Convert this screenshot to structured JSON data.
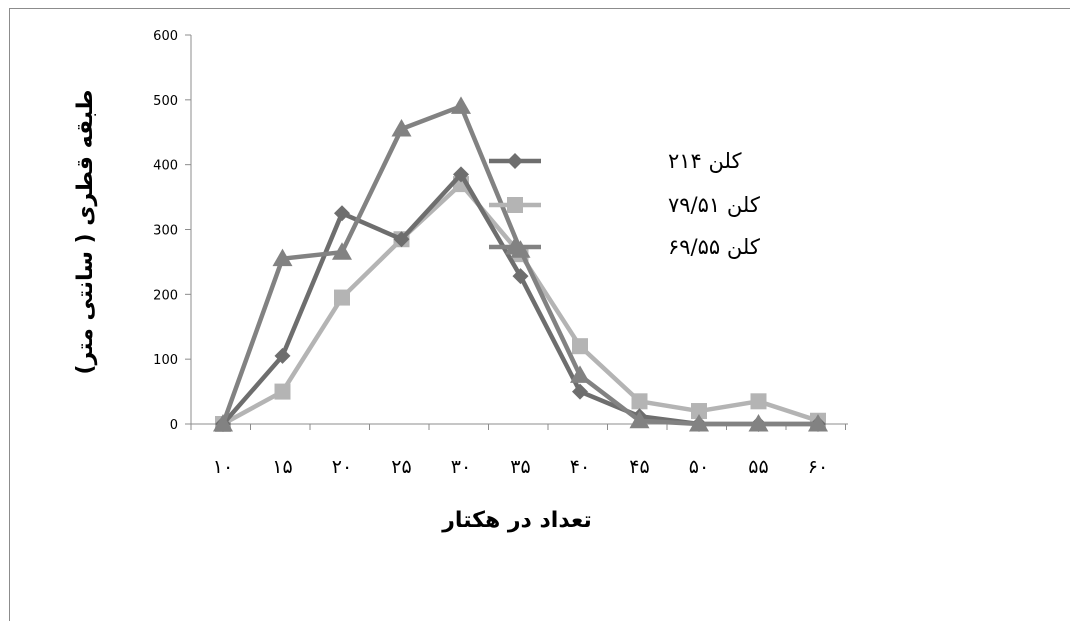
{
  "chart_data": {
    "type": "line",
    "title": "",
    "xlabel": "تعداد در هکتار",
    "ylabel": "طبقه قطری ( سانتی متر)",
    "categories": [
      "۱۰",
      "۱۵",
      "۲۰",
      "۲۵",
      "۳۰",
      "۳۵",
      "۴۰",
      "۴۵",
      "۵۰",
      "۵۵",
      "۶۰"
    ],
    "y_ticks": [
      "0",
      "100",
      "200",
      "300",
      "400",
      "500",
      "600"
    ],
    "ylim": [
      0,
      600
    ],
    "grid": false,
    "legend_position": "right",
    "series": [
      {
        "name": "کلن ۲۱۴",
        "marker": "diamond",
        "color": "#6e6e6e",
        "values": [
          0,
          105,
          325,
          285,
          385,
          228,
          50,
          12,
          0,
          0,
          0
        ]
      },
      {
        "name": "کلن ۷۹/۵۱",
        "marker": "square",
        "color": "#b4b4b4",
        "values": [
          0,
          50,
          195,
          285,
          370,
          262,
          120,
          35,
          20,
          35,
          5
        ]
      },
      {
        "name": "کلن ۶۹/۵۵",
        "marker": "triangle",
        "color": "#828282",
        "values": [
          0,
          255,
          265,
          455,
          490,
          268,
          75,
          5,
          0,
          0,
          0
        ]
      }
    ]
  }
}
